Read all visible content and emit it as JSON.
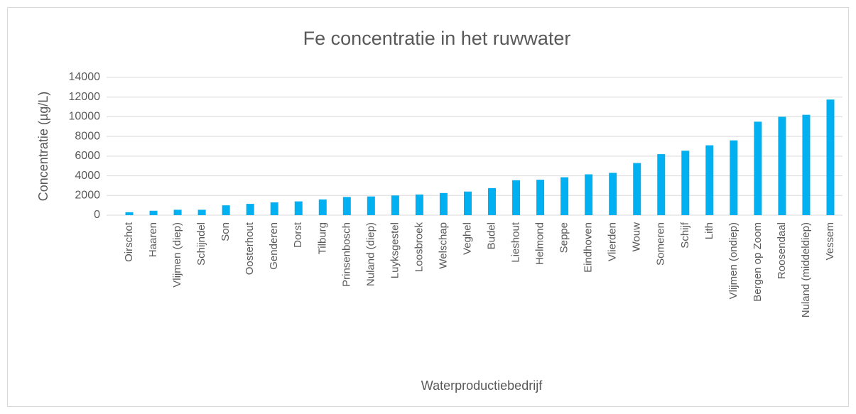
{
  "chart_data": {
    "type": "bar",
    "title": "Fe concentratie in het ruwwater",
    "x_label": "Waterproductiebedrijf",
    "y_label": "Concentratie (µg/L)",
    "categories": [
      "Oirschot",
      "Haaren",
      "Vlijmen (diep)",
      "Schijndel",
      "Son",
      "Oosterhout",
      "Genderen",
      "Dorst",
      "Tilburg",
      "Prinsenbosch",
      "Nuland (diep)",
      "Luyksgestel",
      "Loosbroek",
      "Welschap",
      "Veghel",
      "Budel",
      "Lieshout",
      "Helmond",
      "Seppe",
      "Eindhoven",
      "Vlierden",
      "Wouw",
      "Someren",
      "Schijf",
      "Lith",
      "Vlijmen (ondiep)",
      "Bergen op Zoom",
      "Roosendaal",
      "Nuland (middeldiep)",
      "Vessem"
    ],
    "values": [
      300,
      450,
      550,
      550,
      1000,
      1150,
      1300,
      1400,
      1600,
      1850,
      1900,
      2000,
      2100,
      2250,
      2400,
      2750,
      3550,
      3600,
      3850,
      4150,
      4300,
      5300,
      6200,
      6550,
      7100,
      7600,
      9500,
      10000,
      10200,
      11750
    ],
    "color": "#00b0f0",
    "ylim": [
      0,
      14000
    ],
    "yticks": [
      0,
      2000,
      4000,
      6000,
      8000,
      10000,
      12000,
      14000
    ],
    "grid": true
  }
}
